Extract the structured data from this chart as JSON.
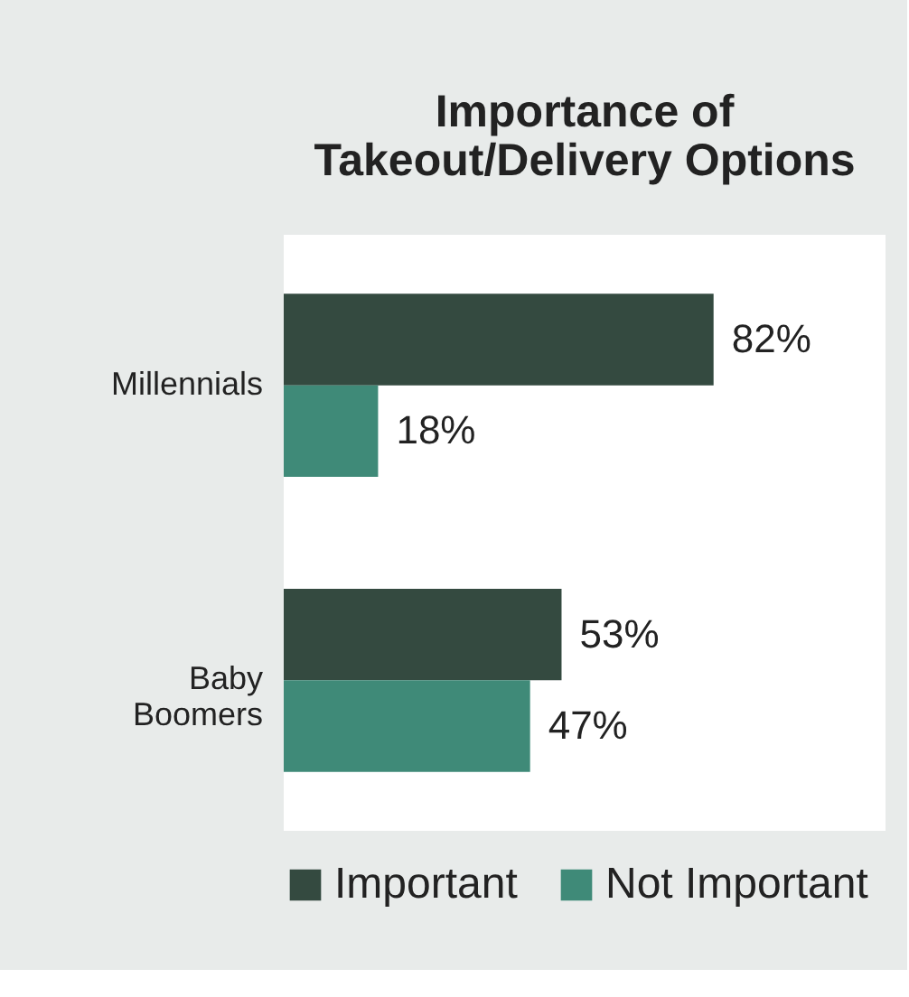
{
  "chart_data": {
    "type": "bar",
    "orientation": "horizontal",
    "title": "Importance of Takeout/Delivery Options",
    "categories": [
      "Millennials",
      "Baby Boomers"
    ],
    "series": [
      {
        "name": "Important",
        "color": "#344a40",
        "values": [
          82,
          53
        ],
        "value_labels": [
          "82%",
          "53%"
        ]
      },
      {
        "name": "Not Important",
        "color": "#3f8a78",
        "values": [
          18,
          47
        ],
        "value_labels": [
          "18%",
          "47%"
        ]
      }
    ],
    "legend": "bottom",
    "grid": false
  }
}
